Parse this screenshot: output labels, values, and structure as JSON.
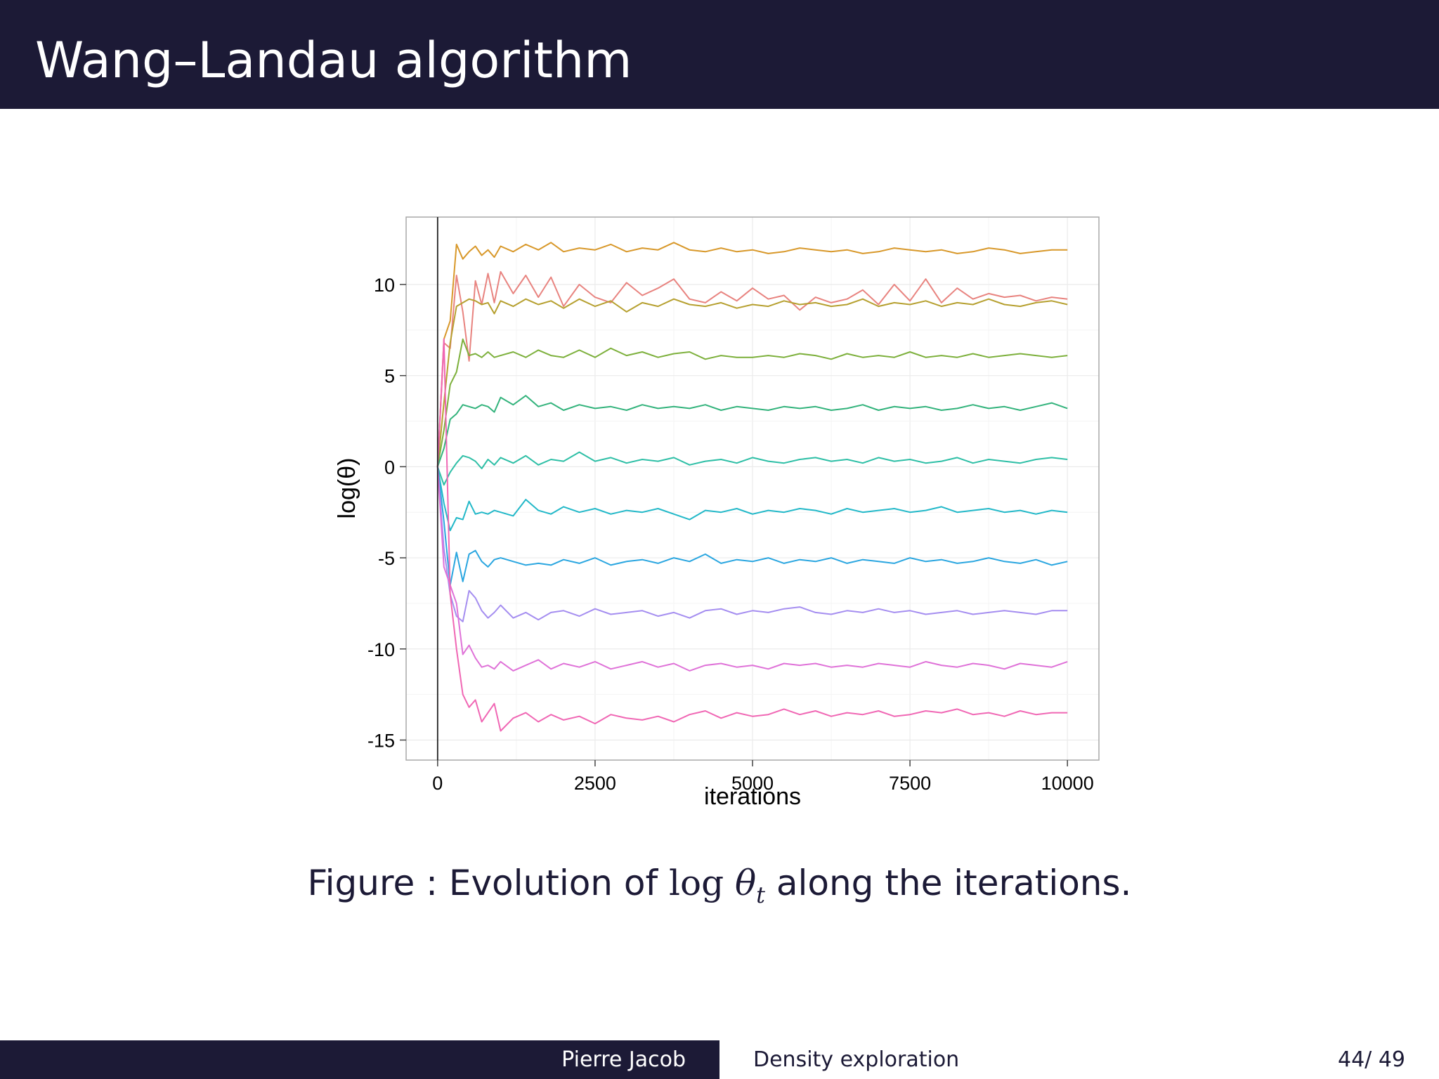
{
  "slide": {
    "title": "Wang–Landau algorithm"
  },
  "caption": {
    "label": "Figure :",
    "text_before": "Evolution of",
    "math_func": "log",
    "math_var": "θ",
    "math_sub": "t",
    "text_after": "along the iterations."
  },
  "footer": {
    "author": "Pierre Jacob",
    "topic": "Density exploration",
    "page": "44/ 49"
  },
  "chart_data": {
    "type": "line",
    "title": "",
    "xlabel": "iterations",
    "ylabel": "log(θ)",
    "xlim": [
      -500,
      10500
    ],
    "ylim": [
      -16.1,
      13.7
    ],
    "xticks": [
      0,
      2500,
      5000,
      7500,
      10000
    ],
    "yticks": [
      -15,
      -10,
      -5,
      0,
      5,
      10
    ],
    "xtick_labels": [
      "0",
      "2500",
      "5000",
      "7500",
      "10000"
    ],
    "ytick_labels": [
      "-15",
      "-10",
      "-5",
      "0",
      "5",
      "10"
    ],
    "vline_x": 0,
    "grid": true,
    "legend": "none",
    "x": [
      0,
      100,
      200,
      300,
      400,
      500,
      600,
      700,
      800,
      900,
      1000,
      1200,
      1400,
      1600,
      1800,
      2000,
      2250,
      2500,
      2750,
      3000,
      3250,
      3500,
      3750,
      4000,
      4250,
      4500,
      4750,
      5000,
      5250,
      5500,
      5750,
      6000,
      6250,
      6500,
      6750,
      7000,
      7250,
      7500,
      7750,
      8000,
      8250,
      8500,
      8750,
      9000,
      9250,
      9500,
      9750,
      10000
    ],
    "series": [
      {
        "color": "#d8982a",
        "values": [
          0,
          7.0,
          8.0,
          12.2,
          11.4,
          11.8,
          12.1,
          11.6,
          11.9,
          11.5,
          12.1,
          11.8,
          12.2,
          11.9,
          12.3,
          11.8,
          12.0,
          11.9,
          12.2,
          11.8,
          12.0,
          11.9,
          12.3,
          11.9,
          11.8,
          12.0,
          11.8,
          11.9,
          11.7,
          11.8,
          12.0,
          11.9,
          11.8,
          11.9,
          11.7,
          11.8,
          12.0,
          11.9,
          11.8,
          11.9,
          11.7,
          11.8,
          12.0,
          11.9,
          11.7,
          11.8,
          11.9,
          11.9
        ]
      },
      {
        "color": "#e8837f",
        "values": [
          0,
          6.8,
          6.5,
          10.5,
          8.5,
          5.8,
          10.2,
          8.9,
          10.6,
          9.0,
          10.7,
          9.5,
          10.5,
          9.3,
          10.4,
          8.8,
          10.0,
          9.3,
          9.0,
          10.1,
          9.4,
          9.8,
          10.3,
          9.2,
          9.0,
          9.6,
          9.1,
          9.8,
          9.2,
          9.4,
          8.6,
          9.3,
          9.0,
          9.2,
          9.7,
          8.9,
          10.0,
          9.1,
          10.3,
          9.0,
          9.8,
          9.2,
          9.5,
          9.3,
          9.4,
          9.1,
          9.3,
          9.2
        ]
      },
      {
        "color": "#b6a030",
        "values": [
          0,
          3.5,
          6.8,
          8.8,
          9.0,
          9.2,
          9.1,
          8.9,
          9.0,
          8.4,
          9.1,
          8.8,
          9.2,
          8.9,
          9.1,
          8.7,
          9.2,
          8.8,
          9.1,
          8.5,
          9.0,
          8.8,
          9.2,
          8.9,
          8.8,
          9.0,
          8.7,
          8.9,
          8.8,
          9.1,
          8.9,
          9.0,
          8.8,
          8.9,
          9.2,
          8.8,
          9.0,
          8.9,
          9.1,
          8.8,
          9.0,
          8.9,
          9.2,
          8.9,
          8.8,
          9.0,
          9.1,
          8.9
        ]
      },
      {
        "color": "#7db03c",
        "values": [
          0,
          2.0,
          4.5,
          5.2,
          7.0,
          6.1,
          6.2,
          6.0,
          6.3,
          6.0,
          6.1,
          6.3,
          6.0,
          6.4,
          6.1,
          6.0,
          6.4,
          6.0,
          6.5,
          6.1,
          6.3,
          6.0,
          6.2,
          6.3,
          5.9,
          6.1,
          6.0,
          6.0,
          6.1,
          6.0,
          6.2,
          6.1,
          5.9,
          6.2,
          6.0,
          6.1,
          6.0,
          6.3,
          6.0,
          6.1,
          6.0,
          6.2,
          6.0,
          6.1,
          6.2,
          6.1,
          6.0,
          6.1
        ]
      },
      {
        "color": "#33b37c",
        "values": [
          0,
          1.0,
          2.6,
          2.9,
          3.4,
          3.3,
          3.2,
          3.4,
          3.3,
          3.0,
          3.8,
          3.4,
          3.9,
          3.3,
          3.5,
          3.1,
          3.4,
          3.2,
          3.3,
          3.1,
          3.4,
          3.2,
          3.3,
          3.2,
          3.4,
          3.1,
          3.3,
          3.2,
          3.1,
          3.3,
          3.2,
          3.3,
          3.1,
          3.2,
          3.4,
          3.1,
          3.3,
          3.2,
          3.3,
          3.1,
          3.2,
          3.4,
          3.2,
          3.3,
          3.1,
          3.3,
          3.5,
          3.2
        ]
      },
      {
        "color": "#2ebfa6",
        "values": [
          0,
          -1.0,
          -0.3,
          0.2,
          0.6,
          0.5,
          0.3,
          -0.1,
          0.4,
          0.1,
          0.5,
          0.2,
          0.6,
          0.1,
          0.4,
          0.3,
          0.8,
          0.3,
          0.5,
          0.2,
          0.4,
          0.3,
          0.5,
          0.1,
          0.3,
          0.4,
          0.2,
          0.5,
          0.3,
          0.2,
          0.4,
          0.5,
          0.3,
          0.4,
          0.2,
          0.5,
          0.3,
          0.4,
          0.2,
          0.3,
          0.5,
          0.2,
          0.4,
          0.3,
          0.2,
          0.4,
          0.5,
          0.4
        ]
      },
      {
        "color": "#22b8c8",
        "values": [
          0,
          -2.0,
          -3.5,
          -2.8,
          -2.9,
          -1.9,
          -2.6,
          -2.5,
          -2.6,
          -2.4,
          -2.5,
          -2.7,
          -1.8,
          -2.4,
          -2.6,
          -2.2,
          -2.5,
          -2.3,
          -2.6,
          -2.4,
          -2.5,
          -2.3,
          -2.6,
          -2.9,
          -2.4,
          -2.5,
          -2.3,
          -2.6,
          -2.4,
          -2.5,
          -2.3,
          -2.4,
          -2.6,
          -2.3,
          -2.5,
          -2.4,
          -2.3,
          -2.5,
          -2.4,
          -2.2,
          -2.5,
          -2.4,
          -2.3,
          -2.5,
          -2.4,
          -2.6,
          -2.4,
          -2.5
        ]
      },
      {
        "color": "#2aa6e0",
        "values": [
          0,
          -3.0,
          -6.5,
          -4.7,
          -6.3,
          -4.8,
          -4.6,
          -5.2,
          -5.5,
          -5.1,
          -5.0,
          -5.2,
          -5.4,
          -5.3,
          -5.4,
          -5.1,
          -5.3,
          -5.0,
          -5.4,
          -5.2,
          -5.1,
          -5.3,
          -5.0,
          -5.2,
          -4.8,
          -5.3,
          -5.1,
          -5.2,
          -5.0,
          -5.3,
          -5.1,
          -5.2,
          -5.0,
          -5.3,
          -5.1,
          -5.2,
          -5.3,
          -5.0,
          -5.2,
          -5.1,
          -5.3,
          -5.2,
          -5.0,
          -5.2,
          -5.3,
          -5.1,
          -5.4,
          -5.2
        ]
      },
      {
        "color": "#a58ef0",
        "values": [
          0,
          -4.5,
          -7.0,
          -8.2,
          -8.5,
          -6.8,
          -7.2,
          -7.9,
          -8.3,
          -8.0,
          -7.6,
          -8.3,
          -8.0,
          -8.4,
          -8.0,
          -7.9,
          -8.2,
          -7.8,
          -8.1,
          -8.0,
          -7.9,
          -8.2,
          -8.0,
          -8.3,
          -7.9,
          -7.8,
          -8.1,
          -7.9,
          -8.0,
          -7.8,
          -7.7,
          -8.0,
          -8.1,
          -7.9,
          -8.0,
          -7.8,
          -8.0,
          -7.9,
          -8.1,
          -8.0,
          -7.9,
          -8.1,
          -8.0,
          -7.9,
          -8.0,
          -8.1,
          -7.9,
          -7.9
        ]
      },
      {
        "color": "#df72d8",
        "values": [
          0,
          -5.5,
          -6.5,
          -7.5,
          -10.3,
          -9.8,
          -10.5,
          -11.0,
          -10.9,
          -11.1,
          -10.7,
          -11.2,
          -10.9,
          -10.6,
          -11.1,
          -10.8,
          -11.0,
          -10.7,
          -11.1,
          -10.9,
          -10.7,
          -11.0,
          -10.8,
          -11.2,
          -10.9,
          -10.8,
          -11.0,
          -10.9,
          -11.1,
          -10.8,
          -10.9,
          -10.8,
          -11.0,
          -10.9,
          -11.0,
          -10.8,
          -10.9,
          -11.0,
          -10.7,
          -10.9,
          -11.0,
          -10.8,
          -10.9,
          -11.1,
          -10.8,
          -10.9,
          -11.0,
          -10.7
        ]
      },
      {
        "color": "#f067b4",
        "values": [
          0,
          7.0,
          -7.0,
          -10.0,
          -12.5,
          -13.2,
          -12.8,
          -14.0,
          -13.5,
          -13.0,
          -14.5,
          -13.8,
          -13.5,
          -14.0,
          -13.6,
          -13.9,
          -13.7,
          -14.1,
          -13.6,
          -13.8,
          -13.9,
          -13.7,
          -14.0,
          -13.6,
          -13.4,
          -13.8,
          -13.5,
          -13.7,
          -13.6,
          -13.3,
          -13.6,
          -13.4,
          -13.7,
          -13.5,
          -13.6,
          -13.4,
          -13.7,
          -13.6,
          -13.4,
          -13.5,
          -13.3,
          -13.6,
          -13.5,
          -13.7,
          -13.4,
          -13.6,
          -13.5,
          -13.5
        ]
      }
    ]
  }
}
